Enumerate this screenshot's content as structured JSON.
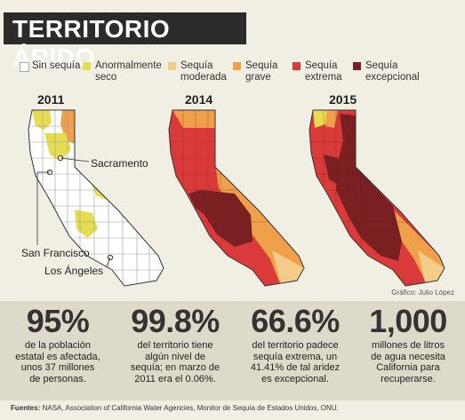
{
  "title": "TERRITORIO ÁRIDO",
  "legend": [
    {
      "label": "Sin sequía",
      "color": "#ffffff"
    },
    {
      "label": "Anormalmente seco",
      "color": "#e5dd4f"
    },
    {
      "label": "Sequía moderada",
      "color": "#f3cc8a"
    },
    {
      "label": "Sequía grave",
      "color": "#f0a04a"
    },
    {
      "label": "Sequía extrema",
      "color": "#db3a3a"
    },
    {
      "label": "Sequía excepcional",
      "color": "#7a1f22"
    }
  ],
  "years": {
    "y2011": "2011",
    "y2014": "2014",
    "y2015": "2015"
  },
  "cities": {
    "sacramento": "Sacramento",
    "san_francisco": "San Francisco",
    "los_angeles": "Los Ángeles"
  },
  "credit": "Gráfico: Julio López",
  "stats": [
    {
      "value": "95%",
      "line1": "de la población",
      "line2": "estatal es afectada,",
      "line3": "unos 37 millones",
      "line4": "de personas."
    },
    {
      "value": "99.8%",
      "line1": "del territorio tiene",
      "line2": "algún nivel de",
      "line3": "sequía; en marzo de",
      "line4": "2011 era el 0.06%."
    },
    {
      "value": "66.6%",
      "line1": "del territorio padece",
      "line2": "sequía extrema, un",
      "line3": "41.41% de tal aridez",
      "line4": "es excepcional."
    },
    {
      "value": "1,000",
      "line1": "millones de litros",
      "line2": "de agua necesita",
      "line3": "California para",
      "line4": "recuperarse."
    }
  ],
  "footer": {
    "label": "Fuentes:",
    "text": "NASA, Association of California Water Agencies, Monitor de Sequía de Estados Unidos, ONU."
  }
}
